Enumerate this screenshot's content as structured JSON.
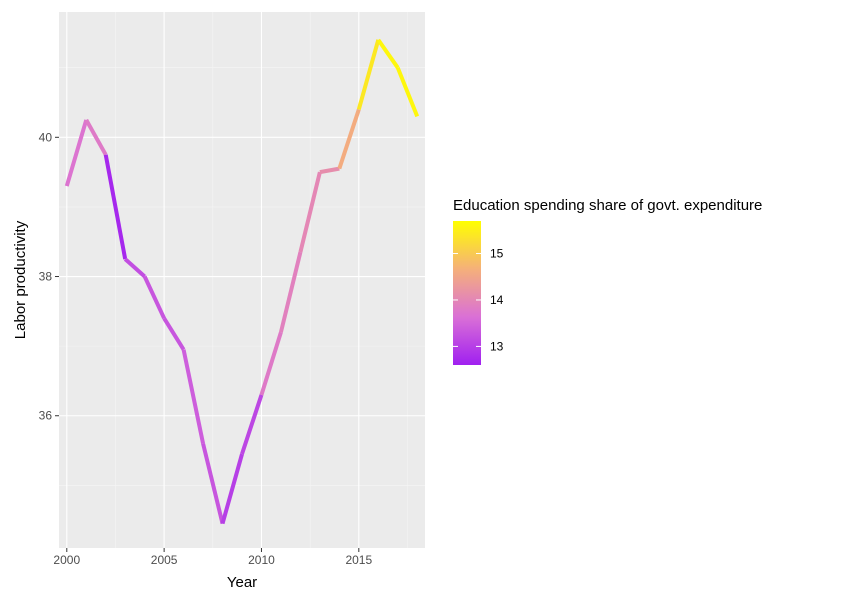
{
  "chart_data": {
    "type": "line",
    "xlabel": "Year",
    "ylabel": "Labor productivity",
    "x": [
      2000,
      2001,
      2002,
      2003,
      2004,
      2005,
      2006,
      2007,
      2008,
      2009,
      2010,
      2011,
      2012,
      2013,
      2014,
      2015,
      2016,
      2017,
      2018
    ],
    "series": [
      {
        "values": [
          39.3,
          40.25,
          39.75,
          38.25,
          38.0,
          37.4,
          36.95,
          35.6,
          34.45,
          35.45,
          36.3,
          37.2,
          38.35,
          39.5,
          39.55,
          40.4,
          41.4,
          41.0,
          40.3
        ],
        "color_values": [
          13.7,
          13.8,
          12.7,
          13.2,
          13.3,
          13.3,
          13.4,
          13.3,
          13.0,
          13.1,
          13.8,
          13.9,
          14.0,
          14.1,
          14.6,
          15.4,
          15.6,
          15.6,
          15.6
        ]
      }
    ],
    "xlim": [
      1999.6,
      2018.4
    ],
    "ylim": [
      34.1,
      41.8
    ],
    "x_ticks": [
      2000,
      2005,
      2010,
      2015
    ],
    "x_tick_labels": [
      "2000",
      "2005",
      "2010",
      "2015"
    ],
    "y_ticks": [
      36,
      38,
      40
    ],
    "y_tick_labels": [
      "36",
      "38",
      "40"
    ],
    "grid": true,
    "background": "#ebebeb",
    "legend": {
      "title": "Education spending share of govt. expenditure",
      "position": "right",
      "type": "colorbar",
      "range": [
        12.6,
        15.7
      ],
      "breaks": [
        13,
        14,
        15
      ],
      "break_labels": [
        "13",
        "14",
        "15"
      ],
      "colors": [
        "#a020f0",
        "#da70d6",
        "#f5b07a",
        "#ffff00"
      ]
    }
  }
}
